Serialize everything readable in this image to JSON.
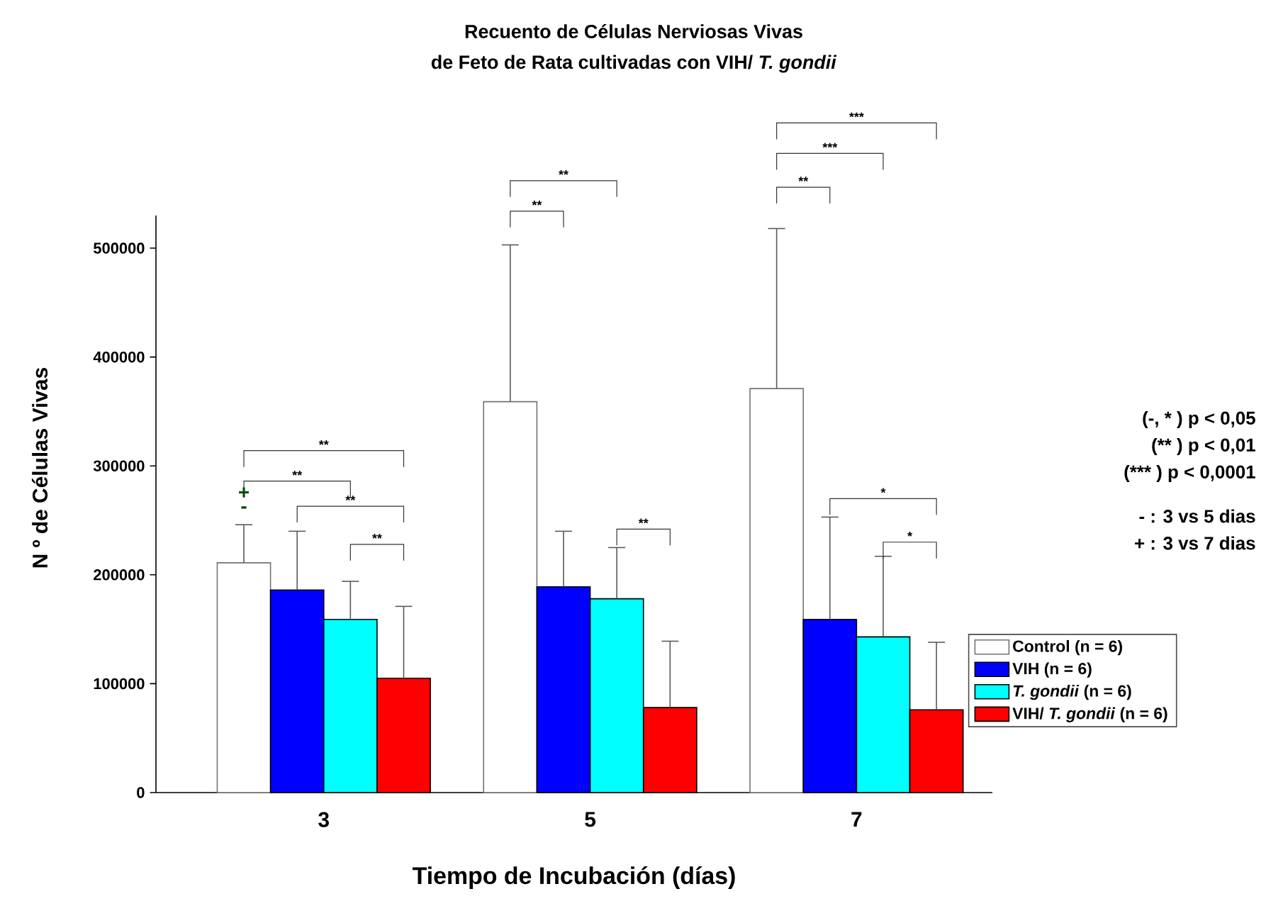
{
  "chart_data": {
    "type": "bar",
    "title": "Recuento de Células Nerviosas Vivas",
    "subtitle": "de Feto de Rata cultivadas con VIH/ *T. gondii*",
    "xlabel": "Tiempo de Incubación (días)",
    "ylabel": "N º de Células Vivas",
    "categories": [
      "3",
      "5",
      "7"
    ],
    "series": [
      {
        "name": "Control (n = 6)",
        "color": "#ffffff",
        "values": [
          211000,
          359000,
          371000
        ],
        "errors": [
          [
            211000,
            246000
          ],
          [
            359000,
            503000
          ],
          [
            371000,
            518000
          ]
        ]
      },
      {
        "name": "VIH (n = 6)",
        "color": "#0000ff",
        "values": [
          186000,
          189000,
          159000
        ],
        "errors": [
          [
            186000,
            240000
          ],
          [
            189000,
            240000
          ],
          [
            159000,
            253000
          ]
        ]
      },
      {
        "name": "*T. gondii* (n = 6)",
        "color": "#00ffff",
        "values": [
          159000,
          178000,
          143000
        ],
        "errors": [
          [
            159000,
            194000
          ],
          [
            178000,
            225000
          ],
          [
            143000,
            217000
          ]
        ]
      },
      {
        "name": "VIH/ *T. gondii* (n = 6)",
        "color": "#ff0000",
        "values": [
          105000,
          78000,
          76000
        ],
        "errors": [
          [
            105000,
            171000
          ],
          [
            78000,
            139000
          ],
          [
            76000,
            138000
          ]
        ]
      }
    ],
    "ylim": [
      0,
      530000
    ],
    "yticks": [
      0,
      100000,
      200000,
      300000,
      400000,
      500000
    ],
    "legend": "bottom right",
    "annotations": [
      "**",
      "**",
      "**",
      "**",
      "**",
      "**",
      "**",
      "***",
      "***",
      "**",
      "*",
      "*",
      "+",
      "-",
      "(-, * ) p < 0,05",
      "(** ) p < 0,01",
      "(*** ) p < 0,0001",
      "- : 3 vs  5 dias",
      "+ : 3 vs  7 dias"
    ]
  }
}
